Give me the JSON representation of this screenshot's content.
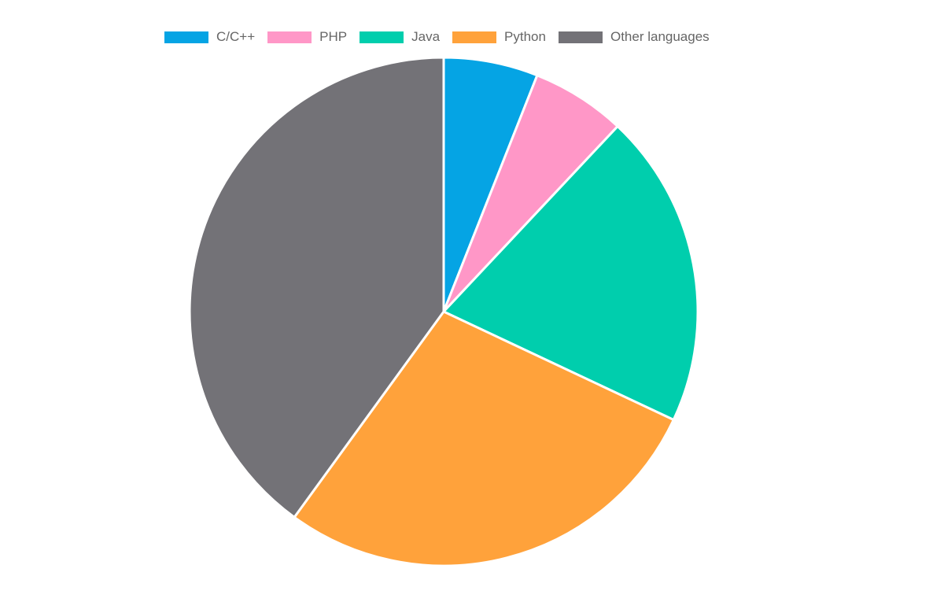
{
  "chart_data": {
    "type": "pie",
    "title": "",
    "legend_position": "top",
    "series": [
      {
        "name": "C/C++",
        "value": 6,
        "color": "#05a4e4"
      },
      {
        "name": "PHP",
        "value": 6,
        "color": "#ff97c7"
      },
      {
        "name": "Java",
        "value": 20,
        "color": "#00cead"
      },
      {
        "name": "Python",
        "value": 28,
        "color": "#ffa23b"
      },
      {
        "name": "Other languages",
        "value": 40,
        "color": "#737277"
      }
    ]
  }
}
